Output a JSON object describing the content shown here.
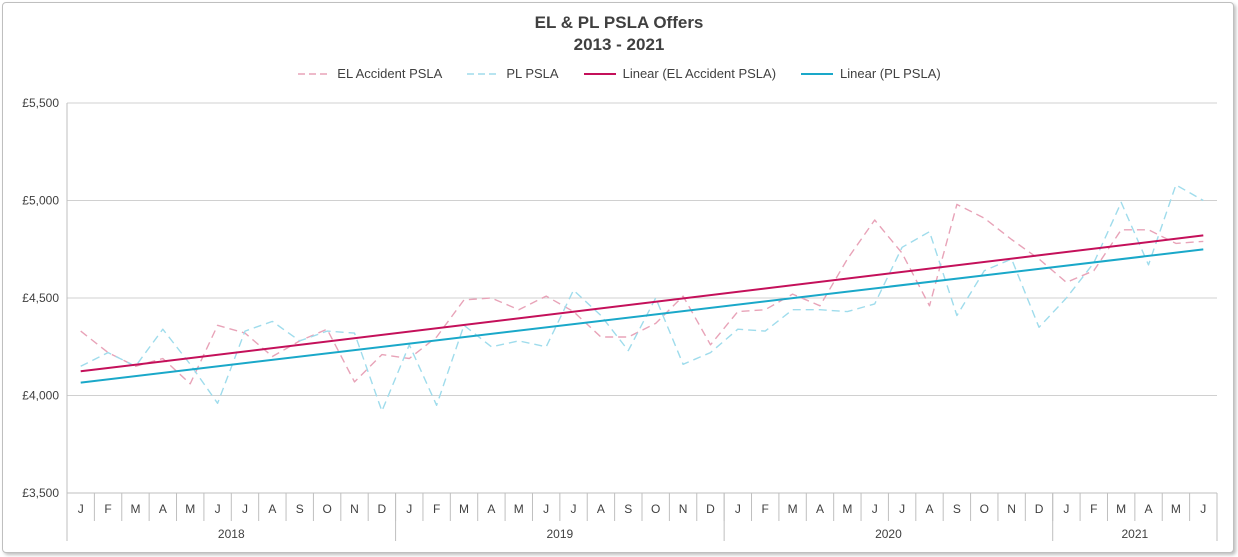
{
  "chart_data": {
    "type": "line",
    "title": "EL & PL PSLA Offers",
    "subtitle": "2013 - 2021",
    "ylim": [
      3500,
      5500
    ],
    "y_ticks": [
      {
        "value": 3500,
        "label": "£3,500"
      },
      {
        "value": 4000,
        "label": "£4,000"
      },
      {
        "value": 4500,
        "label": "£4,500"
      },
      {
        "value": 5000,
        "label": "£5,000"
      },
      {
        "value": 5500,
        "label": "£5,500"
      }
    ],
    "grid": "horizontal",
    "legend_position": "top",
    "months": [
      "J",
      "F",
      "M",
      "A",
      "M",
      "J",
      "J",
      "A",
      "S",
      "O",
      "N",
      "D",
      "J",
      "F",
      "M",
      "A",
      "M",
      "J",
      "J",
      "A",
      "S",
      "O",
      "N",
      "D",
      "J",
      "F",
      "M",
      "A",
      "M",
      "J",
      "J",
      "A",
      "S",
      "O",
      "N",
      "D",
      "J",
      "F",
      "M",
      "A",
      "M",
      "J"
    ],
    "years": [
      {
        "label": "2018",
        "span": 12
      },
      {
        "label": "2019",
        "span": 12
      },
      {
        "label": "2020",
        "span": 12
      },
      {
        "label": "2021",
        "span": 6
      }
    ],
    "series": [
      {
        "name": "EL Accident PSLA",
        "color": "#e8a3b8",
        "style": "dashed",
        "values": [
          4330,
          4220,
          4150,
          4190,
          4060,
          4360,
          4320,
          4200,
          4280,
          4340,
          4070,
          4210,
          4190,
          4300,
          4490,
          4500,
          4440,
          4510,
          4430,
          4300,
          4300,
          4370,
          4510,
          4260,
          4430,
          4440,
          4520,
          4460,
          4700,
          4900,
          4730,
          4460,
          4980,
          4910,
          4800,
          4700,
          4580,
          4640,
          4850,
          4850,
          4780,
          4790
        ]
      },
      {
        "name": "PL PSLA",
        "color": "#9fdcec",
        "style": "dashed",
        "values": [
          4150,
          4220,
          4150,
          4340,
          4160,
          3960,
          4330,
          4380,
          4280,
          4330,
          4320,
          3920,
          4260,
          3950,
          4360,
          4250,
          4280,
          4250,
          4540,
          4410,
          4230,
          4500,
          4160,
          4220,
          4340,
          4330,
          4440,
          4440,
          4430,
          4470,
          4760,
          4840,
          4410,
          4640,
          4700,
          4350,
          4500,
          4680,
          4990,
          4670,
          5080,
          5000
        ]
      },
      {
        "name": "Linear (EL Accident PSLA)",
        "color": "#c4105a",
        "style": "solid",
        "trend": [
          4124,
          4821
        ]
      },
      {
        "name": "Linear (PL PSLA)",
        "color": "#1aa8c9",
        "style": "solid",
        "trend": [
          4066,
          4749
        ]
      }
    ]
  }
}
